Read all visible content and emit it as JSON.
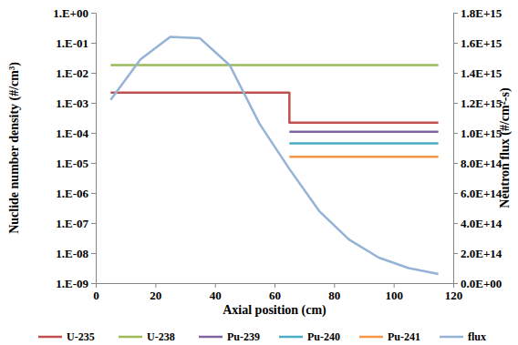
{
  "chart_data": {
    "type": "line",
    "x_label": "Axial position (cm)",
    "y_label": "Nuclide number density (#/cm³)",
    "y2_label": "Neutron flux (#/cm²-s)",
    "log": "y",
    "grid": false,
    "legend": "bottom",
    "xlim": [
      0,
      120
    ],
    "xticks": [
      0,
      20,
      40,
      60,
      80,
      100,
      120
    ],
    "ylim": [
      1e-09,
      1
    ],
    "yticks": [
      {
        "value": 1,
        "label": "1.E+00"
      },
      {
        "value": 0.1,
        "label": "1.E-01"
      },
      {
        "value": 0.01,
        "label": "1.E-02"
      },
      {
        "value": 0.001,
        "label": "1.E-03"
      },
      {
        "value": 0.0001,
        "label": "1.E-04"
      },
      {
        "value": 1e-05,
        "label": "1.E-05"
      },
      {
        "value": 1e-06,
        "label": "1.E-06"
      },
      {
        "value": 1e-07,
        "label": "1.E-07"
      },
      {
        "value": 1e-08,
        "label": "1.E-08"
      },
      {
        "value": 1e-09,
        "label": "1.E-09"
      }
    ],
    "y2lim": [
      0,
      1800000000000000.0
    ],
    "y2ticks": [
      {
        "value": 0,
        "label": "0.0E+00"
      },
      {
        "value": 200000000000000.0,
        "label": "2.0E+14"
      },
      {
        "value": 400000000000000.0,
        "label": "4.0E+14"
      },
      {
        "value": 600000000000000.0,
        "label": "6.0E+14"
      },
      {
        "value": 800000000000000.0,
        "label": "8.0E+14"
      },
      {
        "value": 1000000000000000.0,
        "label": "1.0E+15"
      },
      {
        "value": 1200000000000000.0,
        "label": "1.2E+15"
      },
      {
        "value": 1400000000000000.0,
        "label": "1.4E+15"
      },
      {
        "value": 1600000000000000.0,
        "label": "1.6E+15"
      },
      {
        "value": 1800000000000000.0,
        "label": "1.8E+15"
      }
    ],
    "series": [
      {
        "name": "U-235",
        "color": "#c0504d",
        "x": [
          5,
          65,
          65,
          115
        ],
        "values": [
          0.0022,
          0.0022,
          0.00022,
          0.00022
        ]
      },
      {
        "name": "U-238",
        "color": "#9bbb59",
        "x": [
          5,
          115
        ],
        "values": [
          0.018,
          0.018
        ]
      },
      {
        "name": "Pu-239",
        "color": "#8064a2",
        "x": [
          65,
          115
        ],
        "values": [
          0.00011,
          0.00011
        ]
      },
      {
        "name": "Pu-240",
        "color": "#4bacc6",
        "x": [
          65,
          115
        ],
        "values": [
          4.5e-05,
          4.5e-05
        ]
      },
      {
        "name": "Pu-241",
        "color": "#f79646",
        "x": [
          65,
          115
        ],
        "values": [
          1.6e-05,
          1.6e-05
        ]
      },
      {
        "name": "flux",
        "color": "#95b3d7",
        "axis": "y2",
        "x": [
          5,
          15,
          25,
          35,
          45,
          55,
          65,
          75,
          85,
          95,
          105,
          115
        ],
        "values": [
          1220000000000000.0,
          1490000000000000.0,
          1640000000000000.0,
          1630000000000000.0,
          1450000000000000.0,
          1060000000000000.0,
          760000000000000.0,
          480000000000000.0,
          290000000000000.0,
          170000000000000.0,
          100000000000000.0,
          60000000000000.0
        ]
      }
    ]
  }
}
